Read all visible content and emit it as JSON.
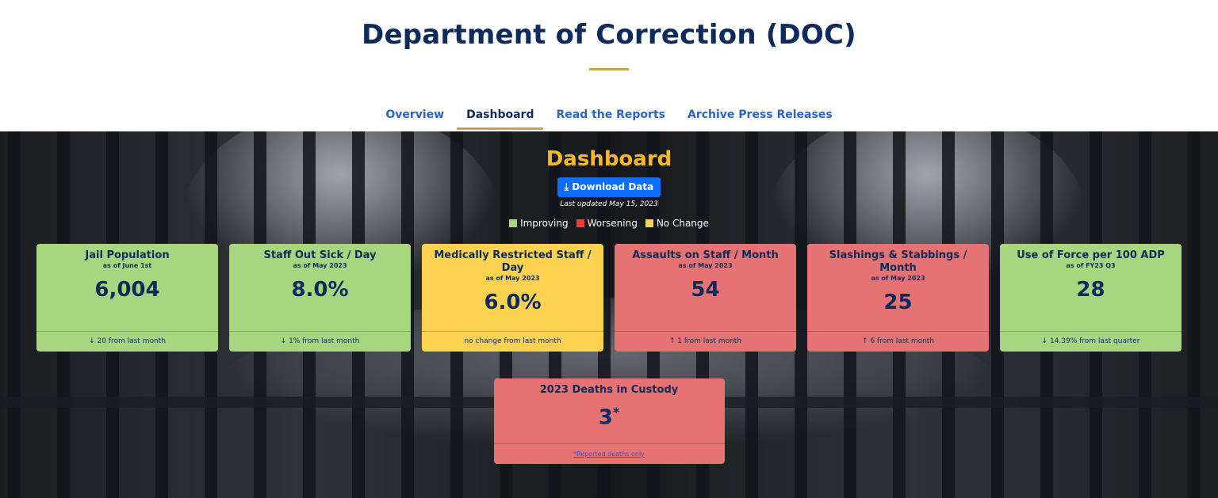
{
  "header": {
    "title": "Department of Correction (DOC)",
    "nav": [
      "Overview",
      "Dashboard",
      "Read the Reports",
      "Archive Press Releases"
    ],
    "active_nav": 1
  },
  "dashboard": {
    "title": "Dashboard",
    "download_button": "Download Data",
    "last_updated": "Last updated May 15, 2023",
    "legend": [
      {
        "label": "Improving",
        "color": "#a8d57f"
      },
      {
        "label": "Worsening",
        "color": "#e8413c"
      },
      {
        "label": "No Change",
        "color": "#fdd250"
      }
    ],
    "cards": [
      {
        "title": "Jail Population",
        "subtitle": "as of June 1st",
        "value": "6,004",
        "footer": "↓ 20 from last month",
        "color": "#a8d57f"
      },
      {
        "title": "Staff Out Sick / Day",
        "subtitle": "as of May 2023",
        "value": "8.0%",
        "footer": "↓ 1% from last month",
        "color": "#a8d57f"
      },
      {
        "title": "Medically Restricted Staff / Day",
        "subtitle": "as of May 2023",
        "value": "6.0%",
        "footer": "no change from last month",
        "color": "#fdd250"
      },
      {
        "title": "Assaults on Staff / Month",
        "subtitle": "as of May 2023",
        "value": "54",
        "footer": "↑ 1 from last month",
        "color": "#e57373"
      },
      {
        "title": "Slashings & Stabbings / Month",
        "subtitle": "as of May 2023",
        "value": "25",
        "footer": "↑ 6 from last month",
        "color": "#e57373"
      },
      {
        "title": "Use of Force per 100 ADP",
        "subtitle": "as of FY23 Q3",
        "value": "28",
        "footer": "↓ 14.39% from last quarter",
        "color": "#a8d57f"
      }
    ],
    "deaths_card": {
      "title": "2023 Deaths in Custody",
      "value": "3",
      "marker": "*",
      "footer_link": "*Reported deaths only",
      "color": "#e57373"
    }
  }
}
